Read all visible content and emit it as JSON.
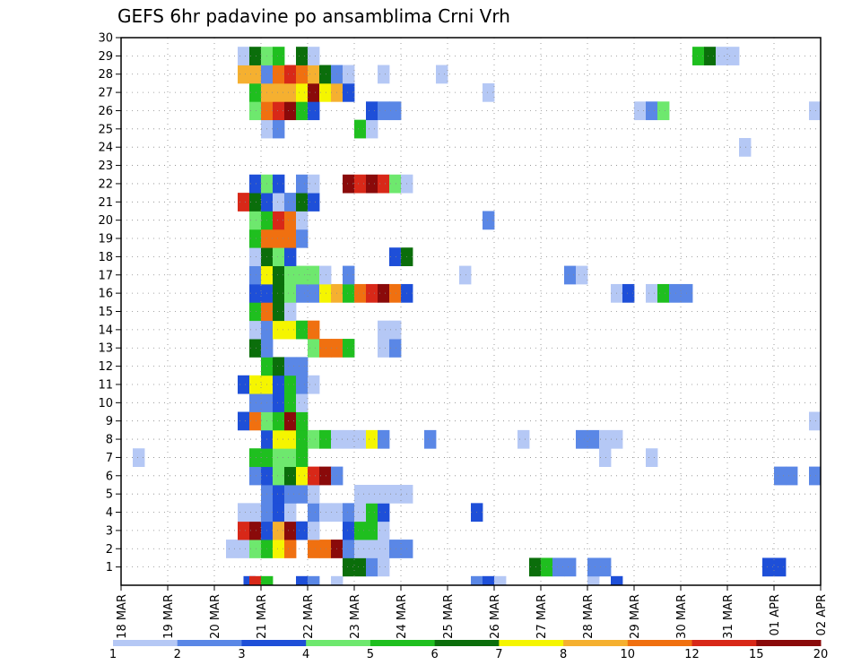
{
  "chart_data": {
    "type": "heatmap",
    "title": "GEFS 6hr padavine po ansamblima Crni Vrh",
    "xlabel": "",
    "ylabel": "",
    "x_ticks": [
      "18 MAR",
      "19 MAR",
      "20 MAR",
      "21 MAR",
      "22 MAR",
      "23 MAR",
      "24 MAR",
      "25 MAR",
      "26 MAR",
      "27 MAR",
      "28 MAR",
      "29 MAR",
      "30 MAR",
      "31 MAR",
      "01 APR",
      "02 APR"
    ],
    "x_range_days": [
      0,
      15
    ],
    "y_ticks": [
      "1",
      "2",
      "3",
      "4",
      "5",
      "6",
      "7",
      "8",
      "9",
      "10",
      "11",
      "12",
      "13",
      "14",
      "15",
      "16",
      "17",
      "18",
      "19",
      "20",
      "21",
      "22",
      "23",
      "24",
      "25",
      "26",
      "27",
      "28",
      "29",
      "30"
    ],
    "y_range": [
      0,
      30
    ],
    "grid": true,
    "colorbar": {
      "labels": [
        "1",
        "2",
        "3",
        "4",
        "5",
        "6",
        "7",
        "8",
        "10",
        "12",
        "15",
        "20"
      ],
      "colors": [
        "#b5c8f5",
        "#5a87e6",
        "#1e4fd8",
        "#6ee86e",
        "#1fbf1f",
        "#0b6e0b",
        "#f5f500",
        "#f5b030",
        "#f07010",
        "#d82818",
        "#8a0a0a"
      ]
    },
    "cell_width_days": 0.25,
    "cells": [
      {
        "m": 0,
        "cells": [
          [
            2.75,
            3
          ],
          [
            2.875,
            10
          ],
          [
            3.125,
            5
          ],
          [
            3.875,
            3
          ],
          [
            4.125,
            2
          ],
          [
            4.625,
            1
          ],
          [
            7.625,
            2
          ],
          [
            7.875,
            3
          ],
          [
            8.125,
            1
          ],
          [
            10.125,
            1
          ],
          [
            10.625,
            3
          ]
        ]
      },
      {
        "m": 1,
        "cells": [
          [
            4.875,
            6
          ],
          [
            5.125,
            6
          ],
          [
            5.375,
            2
          ],
          [
            5.625,
            1
          ],
          [
            8.875,
            6
          ],
          [
            9.125,
            5
          ],
          [
            9.375,
            2
          ],
          [
            9.625,
            2
          ],
          [
            10.125,
            2
          ],
          [
            10.375,
            2
          ],
          [
            13.875,
            3
          ],
          [
            14.125,
            3
          ]
        ]
      },
      {
        "m": 2,
        "cells": [
          [
            2.375,
            1
          ],
          [
            2.625,
            1
          ],
          [
            2.875,
            4
          ],
          [
            3.125,
            5
          ],
          [
            3.375,
            7
          ],
          [
            3.625,
            9
          ],
          [
            4.125,
            9
          ],
          [
            4.375,
            9
          ],
          [
            4.625,
            11
          ],
          [
            4.875,
            2
          ],
          [
            5.125,
            1
          ],
          [
            5.375,
            1
          ],
          [
            5.625,
            1
          ],
          [
            5.875,
            2
          ],
          [
            6.125,
            2
          ]
        ]
      },
      {
        "m": 3,
        "cells": [
          [
            2.625,
            10
          ],
          [
            2.875,
            11
          ],
          [
            3.125,
            3
          ],
          [
            3.375,
            8
          ],
          [
            3.625,
            11
          ],
          [
            3.875,
            3
          ],
          [
            4.125,
            1
          ],
          [
            4.875,
            3
          ],
          [
            5.125,
            5
          ],
          [
            5.375,
            5
          ],
          [
            5.625,
            1
          ]
        ]
      },
      {
        "m": 4,
        "cells": [
          [
            2.625,
            1
          ],
          [
            2.875,
            1
          ],
          [
            3.125,
            2
          ],
          [
            3.375,
            3
          ],
          [
            3.625,
            1
          ],
          [
            4.125,
            2
          ],
          [
            4.375,
            1
          ],
          [
            4.625,
            1
          ],
          [
            4.875,
            2
          ],
          [
            5.125,
            1
          ],
          [
            5.375,
            5
          ],
          [
            5.625,
            3
          ],
          [
            7.625,
            3
          ]
        ]
      },
      {
        "m": 5,
        "cells": [
          [
            3.125,
            2
          ],
          [
            3.375,
            3
          ],
          [
            3.625,
            2
          ],
          [
            3.875,
            2
          ],
          [
            4.125,
            1
          ],
          [
            5.125,
            1
          ],
          [
            5.375,
            1
          ],
          [
            5.625,
            1
          ],
          [
            5.875,
            1
          ],
          [
            6.125,
            1
          ]
        ]
      },
      {
        "m": 6,
        "cells": [
          [
            2.875,
            2
          ],
          [
            3.125,
            3
          ],
          [
            3.375,
            4
          ],
          [
            3.625,
            6
          ],
          [
            3.875,
            7
          ],
          [
            4.125,
            10
          ],
          [
            4.375,
            11
          ],
          [
            4.625,
            2
          ],
          [
            14.125,
            2
          ],
          [
            14.375,
            2
          ],
          [
            14.875,
            2
          ]
        ]
      },
      {
        "m": 7,
        "cells": [
          [
            0.375,
            1
          ],
          [
            2.875,
            5
          ],
          [
            3.125,
            5
          ],
          [
            3.375,
            4
          ],
          [
            3.625,
            4
          ],
          [
            3.875,
            5
          ],
          [
            10.375,
            1
          ],
          [
            11.375,
            1
          ]
        ]
      },
      {
        "m": 8,
        "cells": [
          [
            3.125,
            3
          ],
          [
            3.375,
            7
          ],
          [
            3.625,
            7
          ],
          [
            3.875,
            5
          ],
          [
            4.125,
            4
          ],
          [
            4.375,
            5
          ],
          [
            4.625,
            1
          ],
          [
            4.875,
            1
          ],
          [
            5.125,
            1
          ],
          [
            5.375,
            7
          ],
          [
            5.625,
            2
          ],
          [
            6.625,
            2
          ],
          [
            8.625,
            1
          ],
          [
            9.875,
            2
          ],
          [
            10.125,
            2
          ],
          [
            10.375,
            1
          ],
          [
            10.625,
            1
          ]
        ]
      },
      {
        "m": 9,
        "cells": [
          [
            2.625,
            3
          ],
          [
            2.875,
            9
          ],
          [
            3.125,
            4
          ],
          [
            3.375,
            5
          ],
          [
            3.625,
            11
          ],
          [
            3.875,
            5
          ],
          [
            14.875,
            1
          ]
        ]
      },
      {
        "m": 10,
        "cells": [
          [
            2.875,
            2
          ],
          [
            3.125,
            2
          ],
          [
            3.375,
            3
          ],
          [
            3.625,
            5
          ],
          [
            3.875,
            1
          ]
        ]
      },
      {
        "m": 11,
        "cells": [
          [
            2.625,
            3
          ],
          [
            2.875,
            7
          ],
          [
            3.125,
            7
          ],
          [
            3.375,
            3
          ],
          [
            3.625,
            5
          ],
          [
            3.875,
            2
          ],
          [
            4.125,
            1
          ]
        ]
      },
      {
        "m": 12,
        "cells": [
          [
            3.125,
            5
          ],
          [
            3.375,
            6
          ],
          [
            3.625,
            2
          ],
          [
            3.875,
            2
          ]
        ]
      },
      {
        "m": 13,
        "cells": [
          [
            2.875,
            6
          ],
          [
            3.125,
            2
          ],
          [
            4.125,
            4
          ],
          [
            4.375,
            9
          ],
          [
            4.625,
            9
          ],
          [
            4.875,
            5
          ],
          [
            5.625,
            1
          ],
          [
            5.875,
            2
          ]
        ]
      },
      {
        "m": 14,
        "cells": [
          [
            2.875,
            1
          ],
          [
            3.125,
            2
          ],
          [
            3.375,
            7
          ],
          [
            3.625,
            7
          ],
          [
            3.875,
            5
          ],
          [
            4.125,
            9
          ],
          [
            5.625,
            1
          ],
          [
            5.875,
            1
          ]
        ]
      },
      {
        "m": 15,
        "cells": [
          [
            2.875,
            5
          ],
          [
            3.125,
            9
          ],
          [
            3.375,
            6
          ],
          [
            3.625,
            1
          ]
        ]
      },
      {
        "m": 16,
        "cells": [
          [
            2.875,
            3
          ],
          [
            3.125,
            3
          ],
          [
            3.375,
            6
          ],
          [
            3.625,
            4
          ],
          [
            3.875,
            2
          ],
          [
            4.125,
            2
          ],
          [
            4.375,
            7
          ],
          [
            4.625,
            8
          ],
          [
            4.875,
            5
          ],
          [
            5.125,
            9
          ],
          [
            5.375,
            10
          ],
          [
            5.625,
            11
          ],
          [
            5.875,
            9
          ],
          [
            6.125,
            3
          ],
          [
            10.625,
            1
          ],
          [
            10.875,
            3
          ],
          [
            11.375,
            1
          ],
          [
            11.625,
            5
          ],
          [
            11.875,
            2
          ],
          [
            12.125,
            2
          ]
        ]
      },
      {
        "m": 17,
        "cells": [
          [
            2.875,
            2
          ],
          [
            3.125,
            7
          ],
          [
            3.375,
            6
          ],
          [
            3.625,
            4
          ],
          [
            3.875,
            4
          ],
          [
            4.125,
            4
          ],
          [
            4.375,
            1
          ],
          [
            4.875,
            2
          ],
          [
            7.375,
            1
          ],
          [
            9.625,
            2
          ],
          [
            9.875,
            1
          ]
        ]
      },
      {
        "m": 18,
        "cells": [
          [
            2.875,
            1
          ],
          [
            3.125,
            6
          ],
          [
            3.375,
            4
          ],
          [
            3.625,
            3
          ],
          [
            5.875,
            3
          ],
          [
            6.125,
            6
          ]
        ]
      },
      {
        "m": 19,
        "cells": [
          [
            2.875,
            5
          ],
          [
            3.125,
            9
          ],
          [
            3.375,
            9
          ],
          [
            3.625,
            9
          ],
          [
            3.875,
            2
          ]
        ]
      },
      {
        "m": 20,
        "cells": [
          [
            2.875,
            4
          ],
          [
            3.125,
            5
          ],
          [
            3.375,
            10
          ],
          [
            3.625,
            9
          ],
          [
            3.875,
            1
          ],
          [
            7.875,
            2
          ]
        ]
      },
      {
        "m": 21,
        "cells": [
          [
            2.625,
            10
          ],
          [
            2.875,
            6
          ],
          [
            3.125,
            3
          ],
          [
            3.375,
            1
          ],
          [
            3.625,
            2
          ],
          [
            3.875,
            6
          ],
          [
            4.125,
            3
          ]
        ]
      },
      {
        "m": 22,
        "cells": [
          [
            2.875,
            3
          ],
          [
            3.125,
            4
          ],
          [
            3.375,
            3
          ],
          [
            3.875,
            2
          ],
          [
            4.125,
            1
          ],
          [
            4.875,
            11
          ],
          [
            5.125,
            10
          ],
          [
            5.375,
            11
          ],
          [
            5.625,
            10
          ],
          [
            5.875,
            4
          ],
          [
            6.125,
            1
          ]
        ]
      },
      {
        "m": 24,
        "cells": [
          [
            13.375,
            1
          ]
        ]
      },
      {
        "m": 25,
        "cells": [
          [
            3.125,
            1
          ],
          [
            3.375,
            2
          ],
          [
            5.125,
            5
          ],
          [
            5.375,
            1
          ]
        ]
      },
      {
        "m": 26,
        "cells": [
          [
            2.875,
            4
          ],
          [
            3.125,
            9
          ],
          [
            3.375,
            10
          ],
          [
            3.625,
            11
          ],
          [
            3.875,
            5
          ],
          [
            4.125,
            3
          ],
          [
            5.375,
            3
          ],
          [
            5.625,
            2
          ],
          [
            5.875,
            2
          ],
          [
            11.125,
            1
          ],
          [
            11.375,
            2
          ],
          [
            11.625,
            4
          ],
          [
            14.875,
            1
          ]
        ]
      },
      {
        "m": 27,
        "cells": [
          [
            2.875,
            5
          ],
          [
            3.125,
            8
          ],
          [
            3.375,
            8
          ],
          [
            3.625,
            8
          ],
          [
            3.875,
            7
          ],
          [
            4.125,
            11
          ],
          [
            4.375,
            7
          ],
          [
            4.625,
            8
          ],
          [
            4.875,
            3
          ],
          [
            7.875,
            1
          ]
        ]
      },
      {
        "m": 28,
        "cells": [
          [
            2.625,
            8
          ],
          [
            2.875,
            8
          ],
          [
            3.125,
            2
          ],
          [
            3.375,
            9
          ],
          [
            3.625,
            10
          ],
          [
            3.875,
            9
          ],
          [
            4.125,
            8
          ],
          [
            4.375,
            6
          ],
          [
            4.625,
            2
          ],
          [
            4.875,
            1
          ],
          [
            5.625,
            1
          ],
          [
            6.875,
            1
          ]
        ]
      },
      {
        "m": 29,
        "cells": [
          [
            2.625,
            1
          ],
          [
            2.875,
            6
          ],
          [
            3.125,
            4
          ],
          [
            3.375,
            5
          ],
          [
            3.875,
            6
          ],
          [
            4.125,
            1
          ],
          [
            12.375,
            5
          ],
          [
            12.625,
            6
          ],
          [
            12.875,
            1
          ],
          [
            13.125,
            1
          ]
        ]
      }
    ]
  }
}
